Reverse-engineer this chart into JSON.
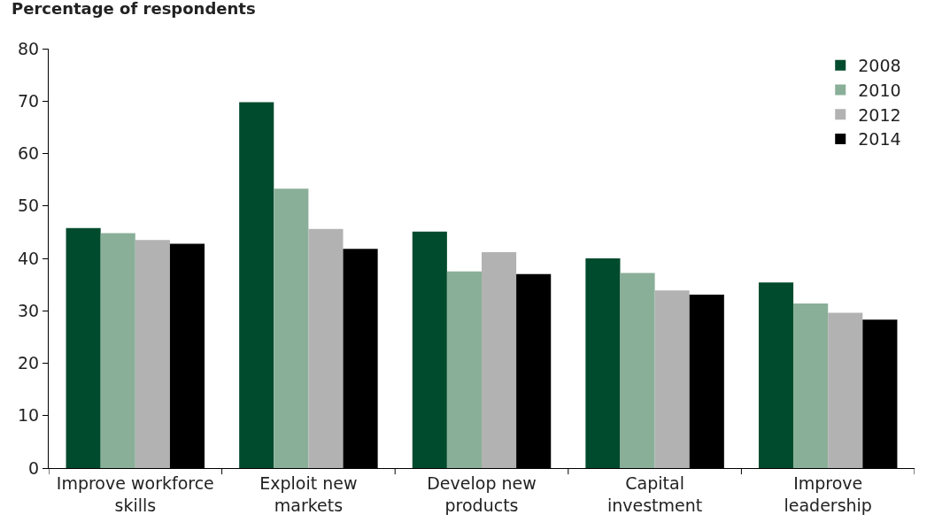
{
  "chart_data": {
    "type": "bar",
    "ylabel": "Percentage of respondents",
    "categories": [
      "Improve workforce skills",
      "Exploit new markets",
      "Develop new products",
      "Capital investment",
      "Improve leadership"
    ],
    "series": [
      {
        "name": "2008",
        "color": "#004b2d",
        "values": [
          45.8,
          69.8,
          45.1,
          40.0,
          35.4
        ]
      },
      {
        "name": "2010",
        "color": "#8aaf98",
        "values": [
          44.8,
          53.3,
          37.5,
          37.2,
          31.4
        ]
      },
      {
        "name": "2012",
        "color": "#b2b2b2",
        "values": [
          43.5,
          45.6,
          41.2,
          33.9,
          29.6
        ]
      },
      {
        "name": "2014",
        "color": "#000000",
        "values": [
          42.8,
          41.8,
          37.0,
          33.1,
          28.3
        ]
      }
    ],
    "ylim": [
      0,
      80
    ],
    "yticks": [
      0,
      10,
      20,
      30,
      40,
      50,
      60,
      70,
      80
    ],
    "grid": false,
    "legend": "top right"
  }
}
